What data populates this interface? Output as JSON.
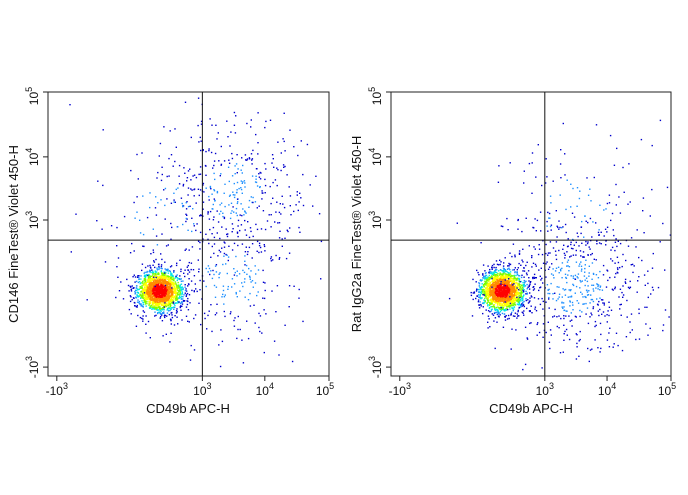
{
  "chart_data": [
    {
      "type": "scatter",
      "subtype": "flow-cytometry-density-dot-plot",
      "title": "",
      "xlabel": "CD49b APC-H",
      "ylabel": "CD146 FineTest® Violet 450-H",
      "x_scale": "biexponential",
      "y_scale": "biexponential",
      "x_ticks": [
        {
          "value": -1000,
          "label": "-10",
          "exp": "3"
        },
        {
          "value": 1000,
          "label": "10",
          "exp": "3"
        },
        {
          "value": 10000,
          "label": "10",
          "exp": "4"
        },
        {
          "value": 100000,
          "label": "10",
          "exp": "5"
        }
      ],
      "y_ticks": [
        {
          "value": -1000,
          "label": "-10",
          "exp": "3"
        },
        {
          "value": 1000,
          "label": "10",
          "exp": "3"
        },
        {
          "value": 10000,
          "label": "10",
          "exp": "4"
        },
        {
          "value": 100000,
          "label": "10",
          "exp": "5"
        }
      ],
      "gates": {
        "x": 1000,
        "y": 450
      },
      "grid": false,
      "legend": "none",
      "density_colors": [
        "#0000cc",
        "#1e90ff",
        "#00e5e5",
        "#7cfc00",
        "#ffff00",
        "#ff8c00",
        "#ff0000"
      ],
      "populations": [
        {
          "x_center": 150,
          "y_center": 10,
          "spread": "tight",
          "fraction": 0.72
        },
        {
          "x_center": 3000,
          "y_center": 3000,
          "spread": "broad",
          "fraction": 0.14
        },
        {
          "x_center": 3000,
          "y_center": 50,
          "spread": "broad",
          "fraction": 0.1
        },
        {
          "x_center": 200,
          "y_center": 1200,
          "spread": "sparse",
          "fraction": 0.04
        }
      ]
    },
    {
      "type": "scatter",
      "subtype": "flow-cytometry-density-dot-plot",
      "title": "",
      "xlabel": "CD49b APC-H",
      "ylabel": "Rat IgG2a FineTest® Violet 450-H",
      "x_scale": "biexponential",
      "y_scale": "biexponential",
      "x_ticks": [
        {
          "value": -1000,
          "label": "-10",
          "exp": "3"
        },
        {
          "value": 1000,
          "label": "10",
          "exp": "3"
        },
        {
          "value": 10000,
          "label": "10",
          "exp": "4"
        },
        {
          "value": 100000,
          "label": "10",
          "exp": "5"
        }
      ],
      "y_ticks": [
        {
          "value": -1000,
          "label": "-10",
          "exp": "3"
        },
        {
          "value": 1000,
          "label": "10",
          "exp": "3"
        },
        {
          "value": 10000,
          "label": "10",
          "exp": "4"
        },
        {
          "value": 100000,
          "label": "10",
          "exp": "5"
        }
      ],
      "gates": {
        "x": 1000,
        "y": 450
      },
      "grid": false,
      "legend": "none",
      "density_colors": [
        "#0000cc",
        "#1e90ff",
        "#00e5e5",
        "#7cfc00",
        "#ffff00",
        "#ff8c00",
        "#ff0000"
      ],
      "populations": [
        {
          "x_center": 150,
          "y_center": 10,
          "spread": "tight",
          "fraction": 0.74
        },
        {
          "x_center": 3000,
          "y_center": 30,
          "spread": "broad",
          "fraction": 0.22
        },
        {
          "x_center": 3000,
          "y_center": 1500,
          "spread": "sparse",
          "fraction": 0.04
        }
      ]
    }
  ]
}
